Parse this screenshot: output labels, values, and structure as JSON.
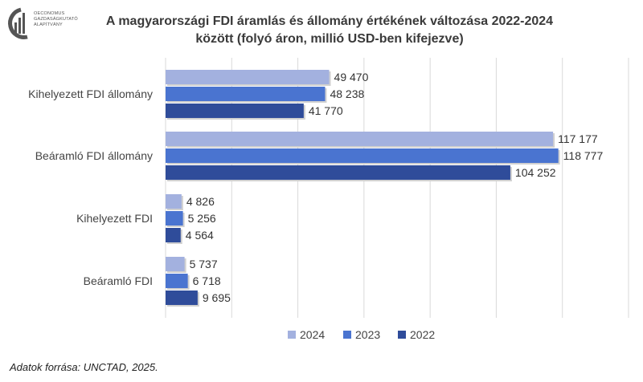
{
  "logo": {
    "lines": [
      "OECONOMUS",
      "GAZDASÁGKUTATÓ",
      "ALAPÍTVÁNY"
    ]
  },
  "chart_data": {
    "type": "bar",
    "orientation": "horizontal",
    "title_line1": "A magyarországi FDI áramlás és állomány értékének változása 2022-2024",
    "title_line2": "között (folyó áron, millió USD-ben kifejezve)",
    "categories": [
      "Kihelyezett FDI állomány",
      "Beáramló FDI állomány",
      "Kihelyezett FDI",
      "Beáramló FDI"
    ],
    "series": [
      {
        "name": "2024",
        "color": "#a3b1df",
        "values": [
          49470,
          117177,
          4826,
          5737
        ],
        "labels": [
          "49 470",
          "117 177",
          "4 826",
          "5 737"
        ]
      },
      {
        "name": "2023",
        "color": "#4a74d0",
        "values": [
          48238,
          118777,
          5256,
          6718
        ],
        "labels": [
          "48 238",
          "118 777",
          "5 256",
          "6 718"
        ]
      },
      {
        "name": "2022",
        "color": "#2f4c9a",
        "values": [
          41770,
          104252,
          4564,
          9695
        ],
        "labels": [
          "41 770",
          "104 252",
          "4 564",
          "9 695"
        ]
      }
    ],
    "xlim": [
      0,
      140000
    ],
    "gridlines": true,
    "legend_position": "bottom"
  },
  "source_text": "Adatok forrása: UNCTAD, 2025."
}
